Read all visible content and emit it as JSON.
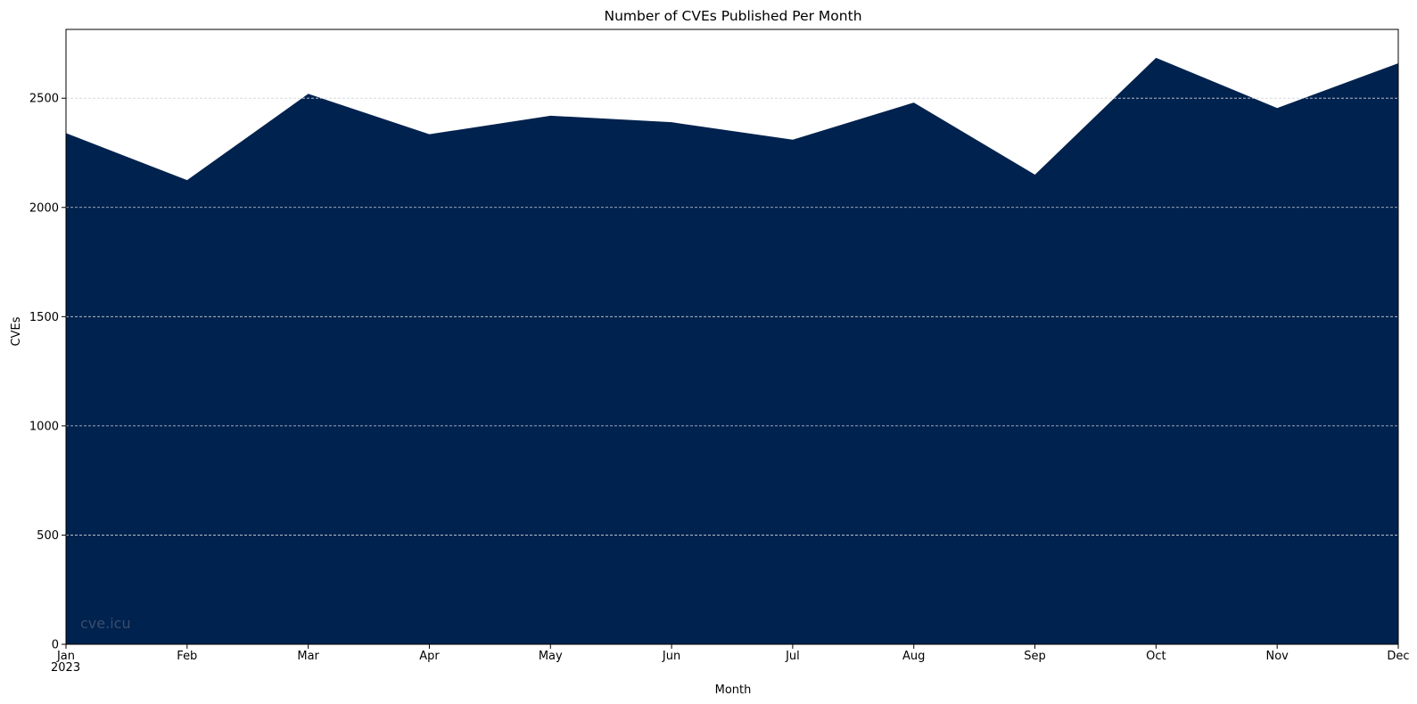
{
  "chart_data": {
    "type": "area",
    "title": "Number of CVEs Published Per Month",
    "xlabel": "Month",
    "ylabel": "CVEs",
    "year_label": "2023",
    "categories": [
      "Jan",
      "Feb",
      "Mar",
      "Apr",
      "May",
      "Jun",
      "Jul",
      "Aug",
      "Sep",
      "Oct",
      "Nov",
      "Dec"
    ],
    "values": [
      2340,
      2125,
      2520,
      2335,
      2420,
      2390,
      2310,
      2480,
      2150,
      2685,
      2455,
      2660
    ],
    "ylim": [
      0,
      2815
    ],
    "yticks": [
      0,
      500,
      1000,
      1500,
      2000,
      2500
    ],
    "grid": "y-dashed",
    "legend": "none",
    "watermark": "cve.icu",
    "colors": {
      "fill": "#00224e",
      "grid": "#cfd3da",
      "watermark": "#3a4d6c"
    }
  }
}
